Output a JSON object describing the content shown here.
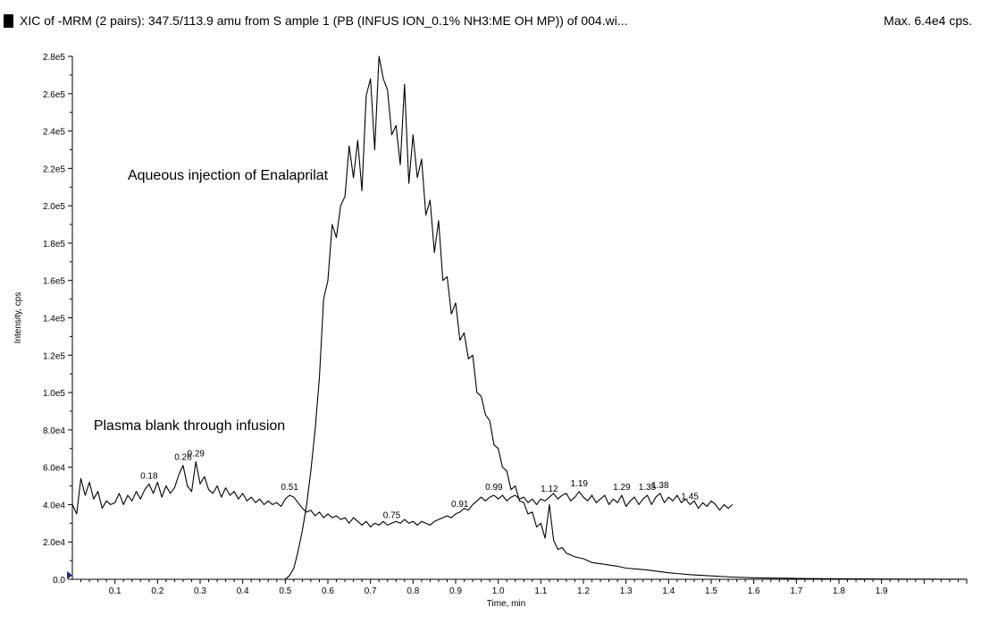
{
  "header": {
    "title": "XIC of -MRM (2 pairs): 347.5/113.9 amu from S ample 1 (PB (INFUS ION_0.1% NH3:ME OH MP)) of 004.wi...",
    "max_label": "Max. 6.4e4 cps."
  },
  "chart_data": {
    "type": "line",
    "xlabel": "Time, min",
    "ylabel": "Intensity, cps",
    "xlim": [
      0,
      2.1
    ],
    "ylim": [
      0,
      280000
    ],
    "x_ticks": [
      "0.1",
      "0.2",
      "0.3",
      "0.4",
      "0.5",
      "0.6",
      "0.7",
      "0.8",
      "0.9",
      "1.0",
      "1.1",
      "1.2",
      "1.3",
      "1.4",
      "1.5",
      "1.6",
      "1.7",
      "1.8",
      "1.9"
    ],
    "y_ticks": [
      "0.0",
      "2.0e4",
      "4.0e4",
      "6.0e4",
      "8.0e4",
      "1.0e5",
      "1.2e5",
      "1.4e5",
      "1.6e5",
      "1.8e5",
      "2.0e5",
      "2.2e5",
      "2.4e5",
      "2.6e5",
      "2.8e5"
    ],
    "annotations": [
      {
        "text": "Aqueous injection of Enalaprilat",
        "x": 0.13,
        "y": 214000
      },
      {
        "text": "Plasma blank through infusion",
        "x": 0.05,
        "y": 80000
      }
    ],
    "series": [
      {
        "points": [
          [
            0.0,
            40000
          ],
          [
            0.01,
            35000
          ],
          [
            0.02,
            54000
          ],
          [
            0.03,
            45000
          ],
          [
            0.04,
            52000
          ],
          [
            0.05,
            43000
          ],
          [
            0.06,
            47000
          ],
          [
            0.07,
            38000
          ],
          [
            0.08,
            42000
          ],
          [
            0.09,
            40000
          ],
          [
            0.1,
            41000
          ],
          [
            0.11,
            46000
          ],
          [
            0.12,
            40000
          ],
          [
            0.13,
            45000
          ],
          [
            0.14,
            42000
          ],
          [
            0.15,
            47000
          ],
          [
            0.16,
            43000
          ],
          [
            0.17,
            48000
          ],
          [
            0.18,
            51000
          ],
          [
            0.19,
            46000
          ],
          [
            0.2,
            52000
          ],
          [
            0.21,
            44000
          ],
          [
            0.22,
            50000
          ],
          [
            0.23,
            46000
          ],
          [
            0.24,
            49000
          ],
          [
            0.25,
            56000
          ],
          [
            0.26,
            61000
          ],
          [
            0.27,
            50000
          ],
          [
            0.28,
            47000
          ],
          [
            0.29,
            63000
          ],
          [
            0.3,
            51000
          ],
          [
            0.31,
            55000
          ],
          [
            0.32,
            48000
          ],
          [
            0.33,
            46000
          ],
          [
            0.34,
            50000
          ],
          [
            0.35,
            44000
          ],
          [
            0.36,
            49000
          ],
          [
            0.37,
            45000
          ],
          [
            0.38,
            47000
          ],
          [
            0.39,
            43000
          ],
          [
            0.4,
            46000
          ],
          [
            0.41,
            42000
          ],
          [
            0.42,
            44000
          ],
          [
            0.43,
            41000
          ],
          [
            0.44,
            43000
          ],
          [
            0.45,
            40000
          ],
          [
            0.46,
            42000
          ],
          [
            0.47,
            40000
          ],
          [
            0.48,
            41000
          ],
          [
            0.49,
            39000
          ],
          [
            0.5,
            43000
          ],
          [
            0.51,
            45000
          ],
          [
            0.52,
            44000
          ],
          [
            0.53,
            41000
          ],
          [
            0.54,
            38000
          ],
          [
            0.55,
            36000
          ],
          [
            0.56,
            37000
          ],
          [
            0.57,
            34000
          ],
          [
            0.58,
            36000
          ],
          [
            0.59,
            33000
          ],
          [
            0.6,
            35000
          ],
          [
            0.61,
            33000
          ],
          [
            0.62,
            34000
          ],
          [
            0.63,
            32000
          ],
          [
            0.64,
            33000
          ],
          [
            0.65,
            30000
          ],
          [
            0.66,
            33000
          ],
          [
            0.67,
            31000
          ],
          [
            0.68,
            29000
          ],
          [
            0.69,
            31000
          ],
          [
            0.7,
            28000
          ],
          [
            0.71,
            30000
          ],
          [
            0.72,
            29000
          ],
          [
            0.73,
            31000
          ],
          [
            0.74,
            29000
          ],
          [
            0.75,
            30000
          ],
          [
            0.76,
            31000
          ],
          [
            0.77,
            30000
          ],
          [
            0.78,
            32000
          ],
          [
            0.79,
            30000
          ],
          [
            0.8,
            31000
          ],
          [
            0.81,
            29000
          ],
          [
            0.82,
            31000
          ],
          [
            0.83,
            30000
          ],
          [
            0.84,
            29000
          ],
          [
            0.85,
            31000
          ],
          [
            0.86,
            32000
          ],
          [
            0.87,
            33000
          ],
          [
            0.88,
            34000
          ],
          [
            0.89,
            33000
          ],
          [
            0.9,
            35000
          ],
          [
            0.91,
            36000
          ],
          [
            0.92,
            38000
          ],
          [
            0.93,
            37000
          ],
          [
            0.94,
            40000
          ],
          [
            0.95,
            42000
          ],
          [
            0.96,
            44000
          ],
          [
            0.97,
            42000
          ],
          [
            0.98,
            44000
          ],
          [
            0.99,
            45000
          ],
          [
            1.0,
            43000
          ],
          [
            1.01,
            45000
          ],
          [
            1.02,
            42000
          ],
          [
            1.03,
            44000
          ],
          [
            1.04,
            45000
          ],
          [
            1.05,
            43000
          ],
          [
            1.06,
            44000
          ],
          [
            1.07,
            41000
          ],
          [
            1.08,
            43000
          ],
          [
            1.09,
            40000
          ],
          [
            1.1,
            43000
          ],
          [
            1.11,
            42000
          ],
          [
            1.12,
            44000
          ],
          [
            1.13,
            46000
          ],
          [
            1.14,
            43000
          ],
          [
            1.15,
            45000
          ],
          [
            1.16,
            46000
          ],
          [
            1.17,
            42000
          ],
          [
            1.18,
            44000
          ],
          [
            1.19,
            47000
          ],
          [
            1.2,
            44000
          ],
          [
            1.21,
            42000
          ],
          [
            1.22,
            45000
          ],
          [
            1.23,
            41000
          ],
          [
            1.24,
            43000
          ],
          [
            1.25,
            45000
          ],
          [
            1.26,
            40000
          ],
          [
            1.27,
            43000
          ],
          [
            1.28,
            41000
          ],
          [
            1.29,
            45000
          ],
          [
            1.3,
            39000
          ],
          [
            1.31,
            42000
          ],
          [
            1.32,
            44000
          ],
          [
            1.33,
            40000
          ],
          [
            1.34,
            43000
          ],
          [
            1.35,
            45000
          ],
          [
            1.36,
            40000
          ],
          [
            1.37,
            44000
          ],
          [
            1.38,
            46000
          ],
          [
            1.39,
            41000
          ],
          [
            1.4,
            44000
          ],
          [
            1.41,
            42000
          ],
          [
            1.42,
            45000
          ],
          [
            1.43,
            41000
          ],
          [
            1.44,
            43000
          ],
          [
            1.45,
            40000
          ],
          [
            1.46,
            42000
          ],
          [
            1.47,
            38000
          ],
          [
            1.48,
            41000
          ],
          [
            1.49,
            39000
          ],
          [
            1.5,
            42000
          ],
          [
            1.51,
            40000
          ],
          [
            1.52,
            37000
          ],
          [
            1.53,
            40000
          ],
          [
            1.54,
            38000
          ],
          [
            1.55,
            40000
          ]
        ],
        "peak_labels": [
          {
            "x": 0.18,
            "y": 51000,
            "text": "0.18"
          },
          {
            "x": 0.26,
            "y": 61000,
            "text": "0.26"
          },
          {
            "x": 0.29,
            "y": 63000,
            "text": "0.29"
          },
          {
            "x": 0.51,
            "y": 45000,
            "text": "0.51"
          },
          {
            "x": 0.75,
            "y": 30000,
            "text": "0.75"
          },
          {
            "x": 0.91,
            "y": 36000,
            "text": "0.91"
          },
          {
            "x": 0.99,
            "y": 45000,
            "text": "0.99"
          },
          {
            "x": 1.12,
            "y": 44000,
            "text": "1.12"
          },
          {
            "x": 1.19,
            "y": 47000,
            "text": "1.19"
          },
          {
            "x": 1.29,
            "y": 45000,
            "text": "1.29"
          },
          {
            "x": 1.35,
            "y": 45000,
            "text": "1.35"
          },
          {
            "x": 1.38,
            "y": 46000,
            "text": "1.38"
          },
          {
            "x": 1.45,
            "y": 40000,
            "text": "1.45"
          }
        ]
      },
      {
        "points": [
          [
            0.0,
            0
          ],
          [
            0.5,
            0
          ],
          [
            0.51,
            2000
          ],
          [
            0.52,
            6000
          ],
          [
            0.53,
            15000
          ],
          [
            0.54,
            26000
          ],
          [
            0.55,
            40000
          ],
          [
            0.56,
            58000
          ],
          [
            0.57,
            80000
          ],
          [
            0.58,
            108000
          ],
          [
            0.59,
            150000
          ],
          [
            0.6,
            160000
          ],
          [
            0.61,
            190000
          ],
          [
            0.62,
            183000
          ],
          [
            0.63,
            200000
          ],
          [
            0.64,
            205000
          ],
          [
            0.65,
            232000
          ],
          [
            0.66,
            215000
          ],
          [
            0.67,
            235000
          ],
          [
            0.68,
            208000
          ],
          [
            0.69,
            259000
          ],
          [
            0.7,
            268000
          ],
          [
            0.71,
            230000
          ],
          [
            0.72,
            280000
          ],
          [
            0.73,
            268000
          ],
          [
            0.74,
            262000
          ],
          [
            0.75,
            238000
          ],
          [
            0.76,
            243000
          ],
          [
            0.77,
            222000
          ],
          [
            0.78,
            265000
          ],
          [
            0.79,
            212000
          ],
          [
            0.8,
            238000
          ],
          [
            0.81,
            215000
          ],
          [
            0.82,
            225000
          ],
          [
            0.83,
            195000
          ],
          [
            0.84,
            203000
          ],
          [
            0.85,
            175000
          ],
          [
            0.86,
            192000
          ],
          [
            0.87,
            160000
          ],
          [
            0.88,
            162000
          ],
          [
            0.89,
            142000
          ],
          [
            0.9,
            148000
          ],
          [
            0.91,
            128000
          ],
          [
            0.92,
            132000
          ],
          [
            0.93,
            118000
          ],
          [
            0.94,
            120000
          ],
          [
            0.95,
            100000
          ],
          [
            0.96,
            98000
          ],
          [
            0.97,
            88000
          ],
          [
            0.98,
            85000
          ],
          [
            0.99,
            72000
          ],
          [
            1.0,
            70000
          ],
          [
            1.01,
            60000
          ],
          [
            1.02,
            58000
          ],
          [
            1.03,
            48000
          ],
          [
            1.04,
            50000
          ],
          [
            1.05,
            42000
          ],
          [
            1.06,
            41000
          ],
          [
            1.07,
            35000
          ],
          [
            1.08,
            36000
          ],
          [
            1.09,
            28000
          ],
          [
            1.1,
            30000
          ],
          [
            1.11,
            22000
          ],
          [
            1.12,
            40000
          ],
          [
            1.13,
            21000
          ],
          [
            1.14,
            16000
          ],
          [
            1.15,
            17000
          ],
          [
            1.16,
            14000
          ],
          [
            1.17,
            13000
          ],
          [
            1.18,
            12000
          ],
          [
            1.2,
            11000
          ],
          [
            1.22,
            9000
          ],
          [
            1.25,
            8000
          ],
          [
            1.28,
            7000
          ],
          [
            1.3,
            6000
          ],
          [
            1.35,
            5000
          ],
          [
            1.4,
            3500
          ],
          [
            1.45,
            2500
          ],
          [
            1.5,
            1800
          ],
          [
            1.55,
            1200
          ],
          [
            1.6,
            800
          ],
          [
            1.7,
            500
          ],
          [
            1.8,
            300
          ],
          [
            1.9,
            150
          ],
          [
            2.0,
            80
          ],
          [
            2.1,
            50
          ]
        ]
      }
    ],
    "marker_color": "#1c2a8a"
  }
}
